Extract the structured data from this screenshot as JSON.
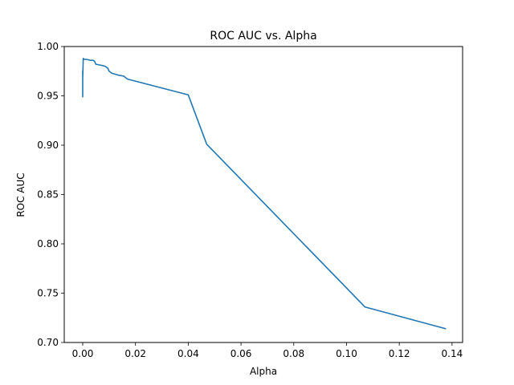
{
  "chart_data": {
    "type": "line",
    "title": "ROC AUC vs. Alpha",
    "xlabel": "Alpha",
    "ylabel": "ROC AUC",
    "xlim": [
      -0.007,
      0.144
    ],
    "ylim": [
      0.7,
      1.0
    ],
    "x_ticks": [
      0.0,
      0.02,
      0.04,
      0.06,
      0.08,
      0.1,
      0.12,
      0.14
    ],
    "x_tick_labels": [
      "0.00",
      "0.02",
      "0.04",
      "0.06",
      "0.08",
      "0.10",
      "0.12",
      "0.14"
    ],
    "y_ticks": [
      0.7,
      0.75,
      0.8,
      0.85,
      0.9,
      0.95,
      1.0
    ],
    "y_tick_labels": [
      "0.70",
      "0.75",
      "0.80",
      "0.85",
      "0.90",
      "0.95",
      "1.00"
    ],
    "grid": false,
    "series": [
      {
        "color": "#1f77b4",
        "x": [
          0.0,
          0.0,
          0.0,
          0.0,
          0.0,
          0.0002,
          0.0005,
          0.0015,
          0.003,
          0.004,
          0.0045,
          0.005,
          0.007,
          0.0085,
          0.0095,
          0.01,
          0.011,
          0.0135,
          0.0155,
          0.017,
          0.04,
          0.047,
          0.107,
          0.1375
        ],
        "y": [
          0.949,
          0.975,
          0.952,
          0.972,
          0.968,
          0.988,
          0.987,
          0.987,
          0.986,
          0.986,
          0.985,
          0.982,
          0.981,
          0.98,
          0.978,
          0.975,
          0.973,
          0.971,
          0.97,
          0.967,
          0.951,
          0.901,
          0.736,
          0.714
        ]
      }
    ]
  }
}
